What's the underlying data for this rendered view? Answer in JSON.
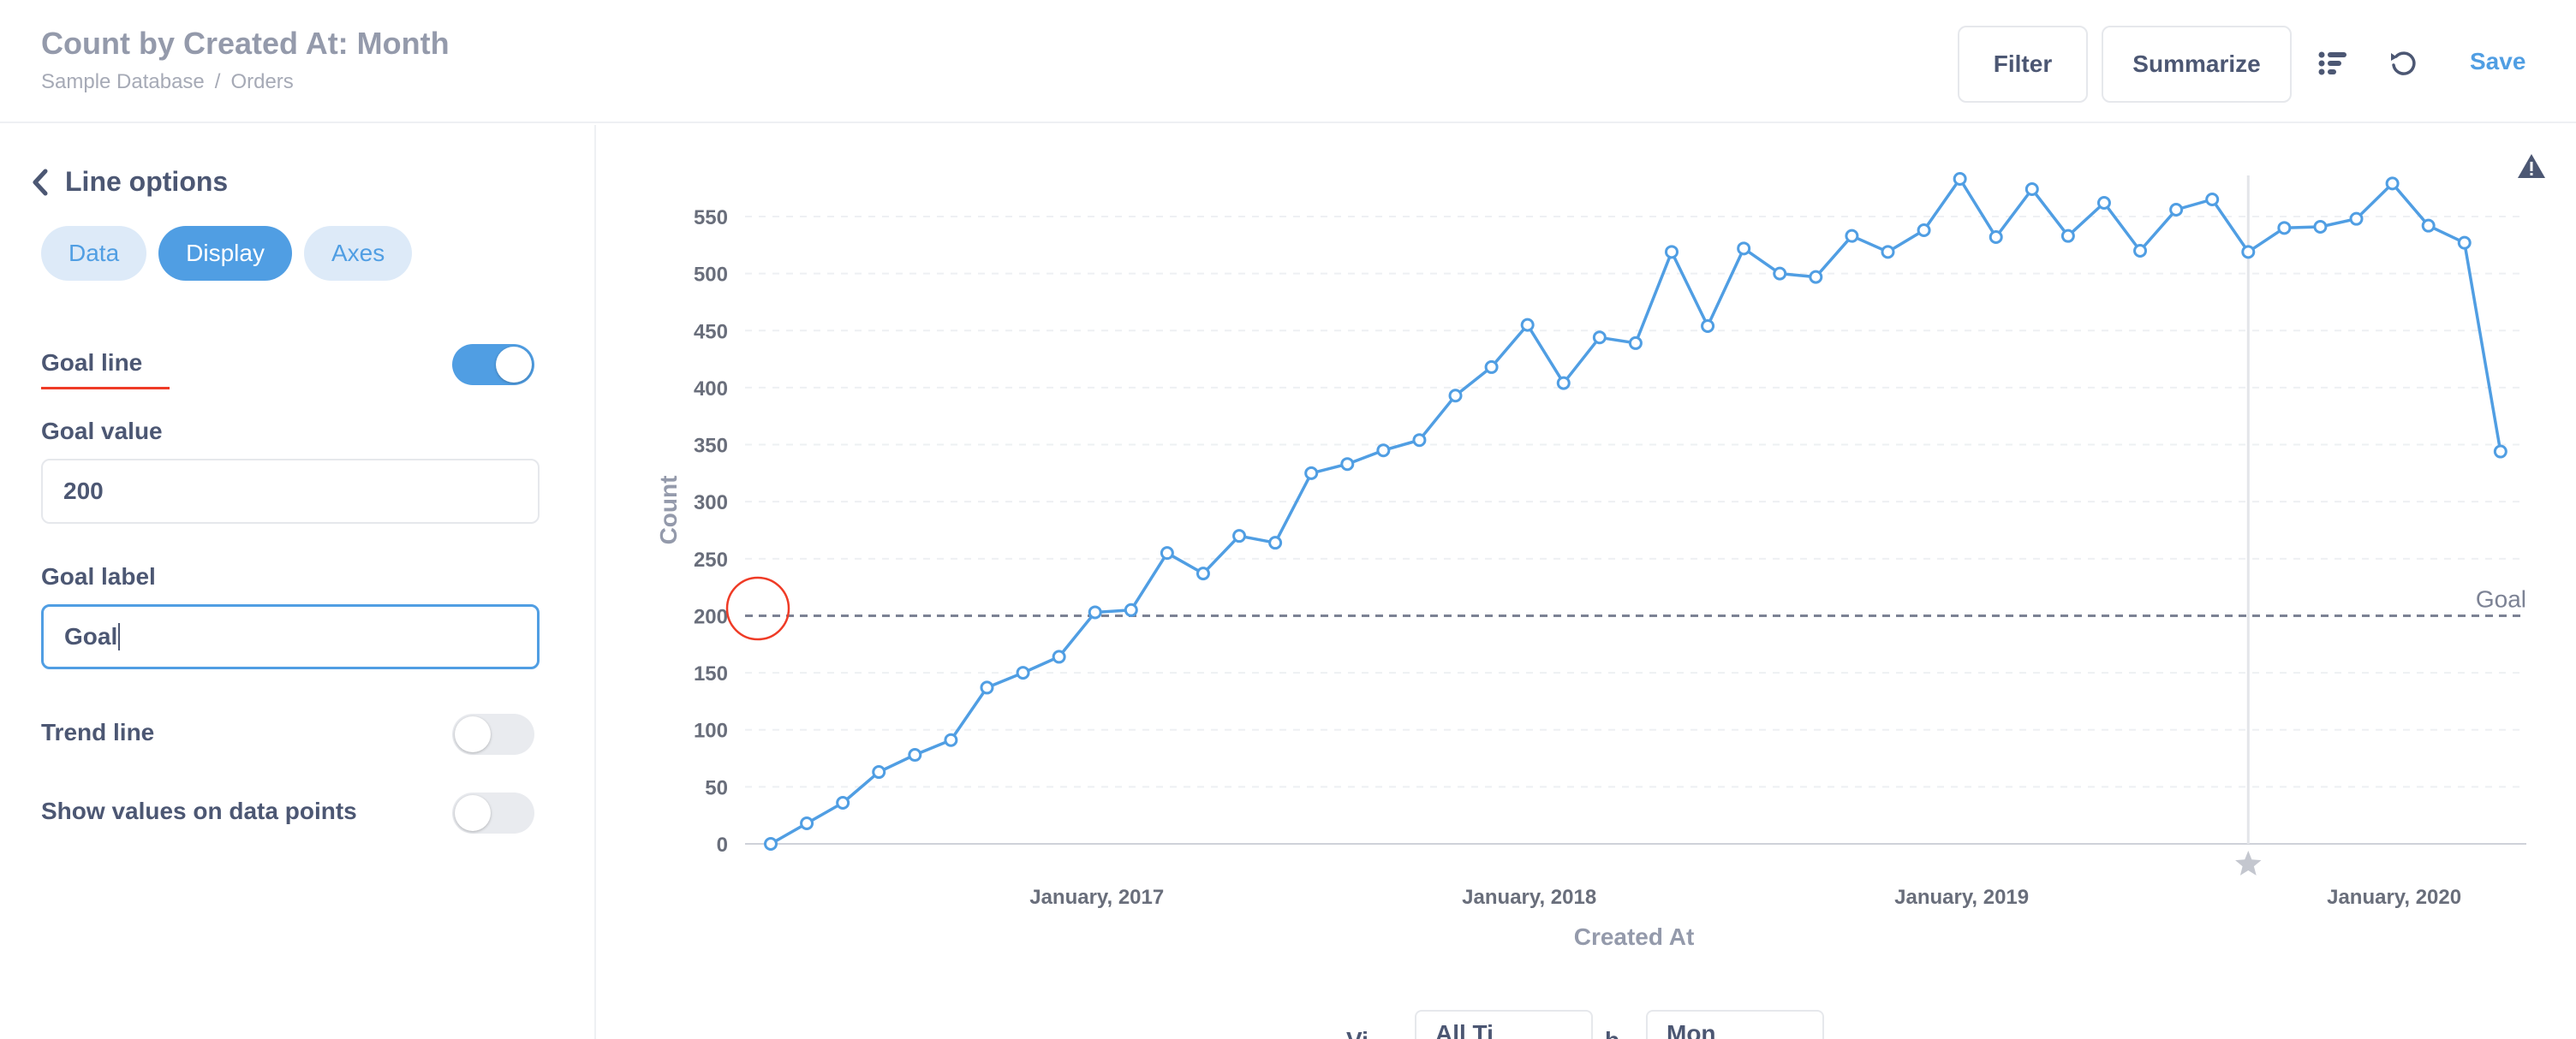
{
  "header": {
    "title": "Count by Created At: Month",
    "breadcrumb": [
      "Sample Database",
      "/",
      "Orders"
    ],
    "filter_label": "Filter",
    "summarize_label": "Summarize",
    "save_label": "Save"
  },
  "sidebar": {
    "back_title": "Line options",
    "tabs": [
      "Data",
      "Display",
      "Axes"
    ],
    "active_tab": "Display",
    "goal_line_label": "Goal line",
    "goal_line_on": true,
    "goal_value_label": "Goal value",
    "goal_value": "200",
    "goal_label_label": "Goal label",
    "goal_label_value": "Goal",
    "trend_line_label": "Trend line",
    "trend_line_on": false,
    "show_values_label": "Show values on data points",
    "show_values_on": false
  },
  "footer_peek": {
    "view_text": "Vi",
    "range_value": "All Ti",
    "by_text": "b",
    "unit_value": "Mon"
  },
  "colors": {
    "accent": "#509ee3",
    "text": "#4c5773",
    "muted": "#949aab",
    "goal_line": "#7c8294",
    "highlight_circle": "#ef3b26"
  },
  "chart_data": {
    "type": "line",
    "title": "",
    "xlabel": "Created At",
    "ylabel": "Count",
    "ylim": [
      0,
      580
    ],
    "yticks": [
      0,
      50,
      100,
      150,
      200,
      250,
      300,
      350,
      400,
      450,
      500,
      550
    ],
    "x_tick_labels": [
      "January, 2017",
      "January, 2018",
      "January, 2019",
      "January, 2020"
    ],
    "x_tick_index": [
      9,
      21,
      33,
      45
    ],
    "grid": true,
    "goal": {
      "value": 200,
      "label": "Goal"
    },
    "highlight_index": 41,
    "series": [
      {
        "values": [
          0,
          18,
          36,
          63,
          78,
          91,
          137,
          150,
          164,
          203,
          205,
          255,
          237,
          270,
          264,
          325,
          333,
          345,
          354,
          393,
          418,
          455,
          404,
          444,
          439,
          519,
          454,
          522,
          500,
          497,
          533,
          519,
          538,
          583,
          532,
          574,
          533,
          562,
          520,
          556,
          565,
          519,
          540,
          541,
          548,
          579,
          542,
          527,
          344
        ]
      }
    ]
  }
}
